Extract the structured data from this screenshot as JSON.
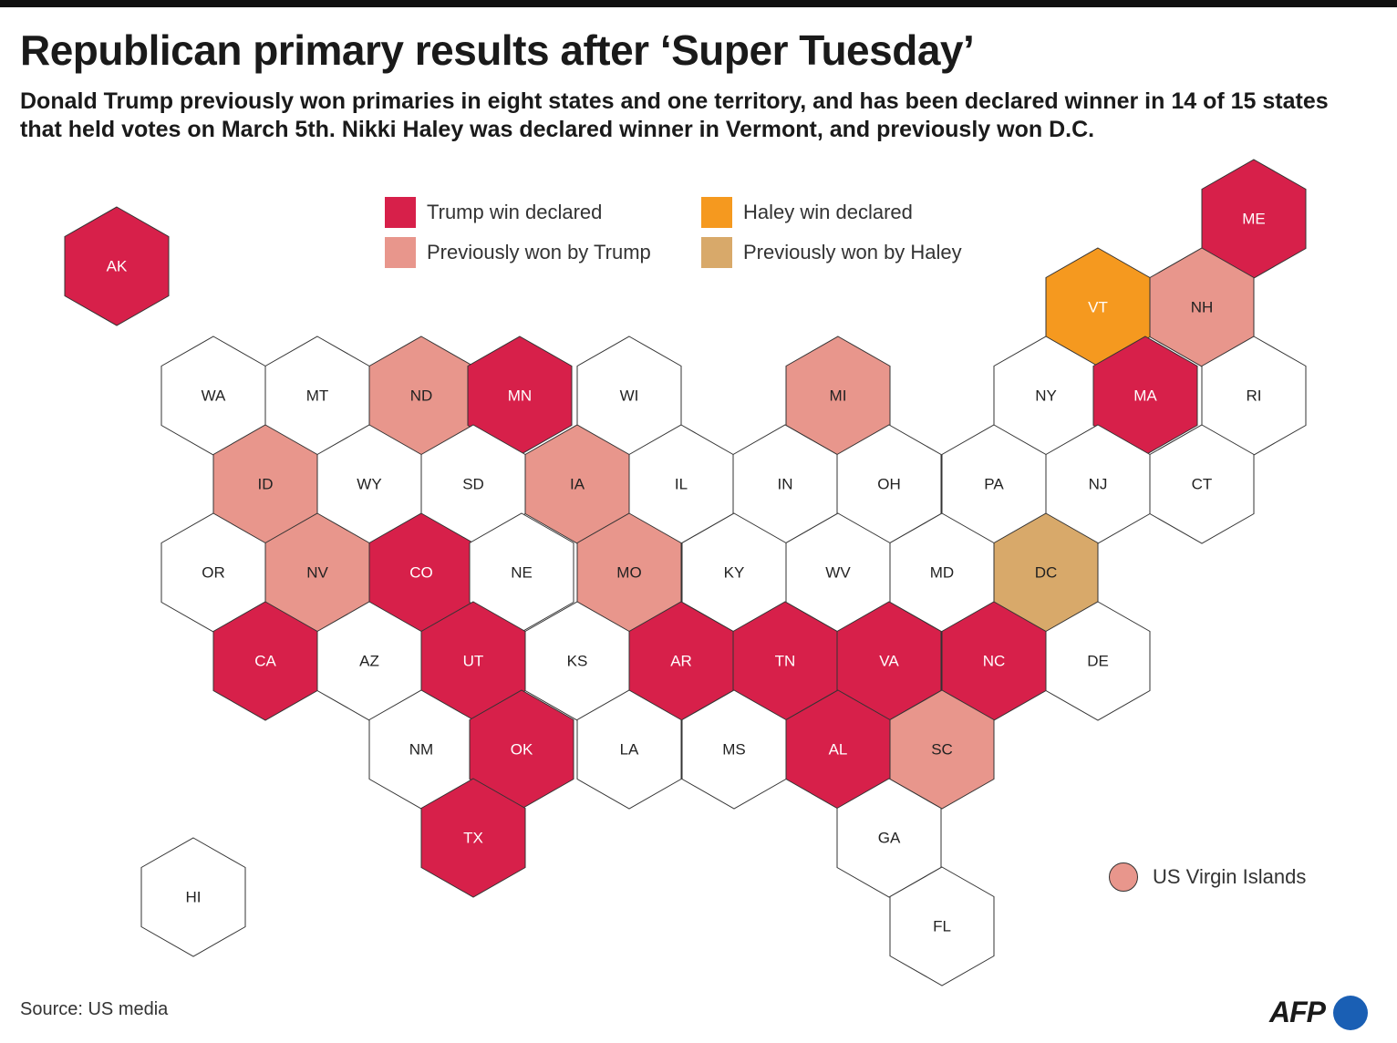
{
  "title": "Republican primary results after ‘Super Tuesday’",
  "subtitle": "Donald Trump previously won primaries in eight states and one territory, and has been declared winner in 14 of 15 states that held votes on March 5th. Nikki Haley was declared winner in Vermont, and previously won D.C.",
  "source": "Source: US media",
  "logo": "AFP",
  "colors": {
    "trump_declared": "#d7204a",
    "trump_previous": "#e8968c",
    "haley_declared": "#f5991f",
    "haley_previous": "#d8a96a",
    "none": "#ffffff"
  },
  "legend": [
    {
      "key": "trump_declared",
      "label": "Trump win declared"
    },
    {
      "key": "trump_previous",
      "label": "Previously won by Trump"
    },
    {
      "key": "haley_declared",
      "label": "Haley win declared"
    },
    {
      "key": "haley_previous",
      "label": "Previously won by Haley"
    }
  ],
  "territory": {
    "label": "US Virgin Islands",
    "status": "trump_previous"
  },
  "states": [
    {
      "code": "AK",
      "status": "trump_declared"
    },
    {
      "code": "HI",
      "status": "none"
    },
    {
      "code": "ME",
      "status": "trump_declared"
    },
    {
      "code": "VT",
      "status": "haley_declared"
    },
    {
      "code": "NH",
      "status": "trump_previous"
    },
    {
      "code": "WA",
      "status": "none"
    },
    {
      "code": "MT",
      "status": "none"
    },
    {
      "code": "ND",
      "status": "trump_previous"
    },
    {
      "code": "MN",
      "status": "trump_declared"
    },
    {
      "code": "WI",
      "status": "none"
    },
    {
      "code": "MI",
      "status": "trump_previous"
    },
    {
      "code": "NY",
      "status": "none"
    },
    {
      "code": "MA",
      "status": "trump_declared"
    },
    {
      "code": "RI",
      "status": "none"
    },
    {
      "code": "ID",
      "status": "trump_previous"
    },
    {
      "code": "WY",
      "status": "none"
    },
    {
      "code": "SD",
      "status": "none"
    },
    {
      "code": "IA",
      "status": "trump_previous"
    },
    {
      "code": "IL",
      "status": "none"
    },
    {
      "code": "IN",
      "status": "none"
    },
    {
      "code": "OH",
      "status": "none"
    },
    {
      "code": "PA",
      "status": "none"
    },
    {
      "code": "NJ",
      "status": "none"
    },
    {
      "code": "CT",
      "status": "none"
    },
    {
      "code": "OR",
      "status": "none"
    },
    {
      "code": "NV",
      "status": "trump_previous"
    },
    {
      "code": "CO",
      "status": "trump_declared"
    },
    {
      "code": "NE",
      "status": "none"
    },
    {
      "code": "MO",
      "status": "trump_previous"
    },
    {
      "code": "KY",
      "status": "none"
    },
    {
      "code": "WV",
      "status": "none"
    },
    {
      "code": "MD",
      "status": "none"
    },
    {
      "code": "DC",
      "status": "haley_previous"
    },
    {
      "code": "CA",
      "status": "trump_declared"
    },
    {
      "code": "AZ",
      "status": "none"
    },
    {
      "code": "UT",
      "status": "trump_declared"
    },
    {
      "code": "KS",
      "status": "none"
    },
    {
      "code": "AR",
      "status": "trump_declared"
    },
    {
      "code": "TN",
      "status": "trump_declared"
    },
    {
      "code": "VA",
      "status": "trump_declared"
    },
    {
      "code": "NC",
      "status": "trump_declared"
    },
    {
      "code": "DE",
      "status": "none"
    },
    {
      "code": "NM",
      "status": "none"
    },
    {
      "code": "OK",
      "status": "trump_declared"
    },
    {
      "code": "LA",
      "status": "none"
    },
    {
      "code": "MS",
      "status": "none"
    },
    {
      "code": "AL",
      "status": "trump_declared"
    },
    {
      "code": "SC",
      "status": "trump_previous"
    },
    {
      "code": "TX",
      "status": "trump_declared"
    },
    {
      "code": "GA",
      "status": "none"
    },
    {
      "code": "FL",
      "status": "none"
    }
  ]
}
